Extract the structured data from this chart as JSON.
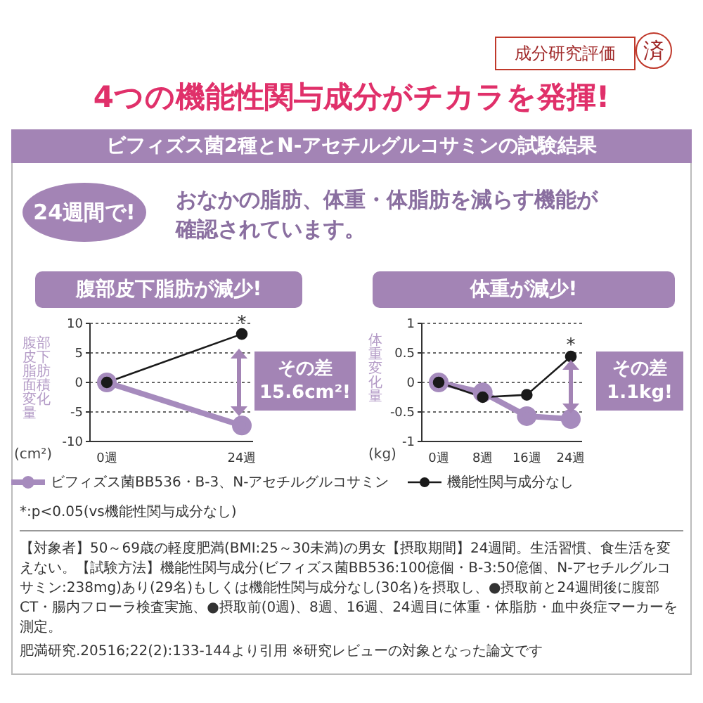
{
  "chart_data": [
    {
      "type": "line",
      "title": "腹部皮下脂肪が減少!",
      "ylabel": "腹部皮下脂肪面積変化量",
      "categories": [
        "0週",
        "24週"
      ],
      "series": [
        {
          "name": "ビフィズス菌BB536・B-3、N-アセチルグルコサミン",
          "color": "#a68bbd",
          "values": [
            0,
            -7.3
          ]
        },
        {
          "name": "機能性関与成分なし",
          "color": "#1a1a1a",
          "values": [
            0,
            8.2
          ]
        }
      ],
      "ylim": [
        -10,
        10
      ],
      "yticks": [
        -10,
        -5,
        0,
        5,
        10
      ],
      "grid": "y",
      "marker": "circle",
      "legend": "bottom",
      "annotations": [
        "成分研究評価",
        "済",
        "4つの機能性関与成分がチカラを発揮!",
        "ビフィズス菌2種とN-アセチルグルコサミンの試験結果",
        "24週間で!",
        "おなかの脂肪、体重・体脂肪を減らす機能が確認されています。",
        "(cm²)",
        {
          "text": "*",
          "x": "24週",
          "y": 8.2
        },
        "その差 15.6cm²!",
        "*:p<0.05(vs機能性関与成分なし)",
        "【対象者】50～69歳の軽度肥満(BMI:25～30未満)の男女【摂取期間】24週間。生活習慣、食生活を変えない。【試験方法】機能性関与成分(ビフィズス菌BB536:100億個・B-3:50億個、N-アセチルグルコサミン:238mg)あり(29名)もしくは機能性関与成分なし(30名)を摂取し、●摂取前と24週間後に腹部CT・腸内フローラ検査実施、●摂取前(0週)、8週、16週、24週目に体重・体脂肪・血中炎症マーカーを測定。",
        "肥満研究.20516;22(2):133-144より引用 ※研究レビューの対象となった論文です"
      ]
    },
    {
      "type": "line",
      "title": "体重が減少!",
      "ylabel": "体重変化量",
      "categories": [
        "0週",
        "8週",
        "16週",
        "24週"
      ],
      "series": [
        {
          "color": "#a68bbd",
          "values": [
            0,
            -0.17,
            -0.57,
            -0.62
          ]
        },
        {
          "color": "#1a1a1a",
          "values": [
            0,
            -0.25,
            -0.21,
            0.44
          ]
        }
      ],
      "ylim": [
        -1,
        1
      ],
      "yticks": [
        -1,
        -0.5,
        0,
        0.5,
        1
      ],
      "grid": "y",
      "marker": "circle",
      "annotations": [
        "(kg)",
        {
          "text": "*",
          "x": "24週",
          "y": 0.44
        },
        "その差 1.1kg!"
      ]
    }
  ]
}
